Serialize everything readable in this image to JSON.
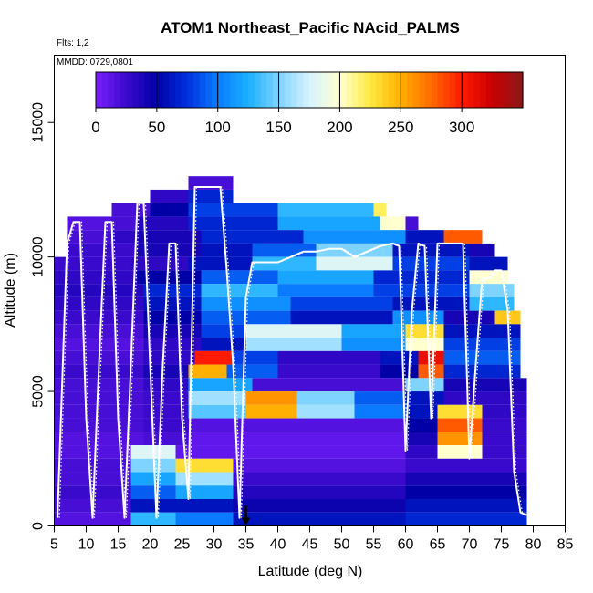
{
  "chart_data": {
    "type": "heatmap",
    "title": "ATOM1 Northeast_Pacific NAcid_PALMS",
    "flights_text": "Flts: 1,2",
    "date_text": "MMDD: 0729,0801",
    "xlabel": "Latitude (deg N)",
    "ylabel": "Altitude (m)",
    "xlim": [
      5,
      85
    ],
    "ylim": [
      0,
      17500
    ],
    "x_ticks": [
      "5",
      "10",
      "15",
      "20",
      "25",
      "30",
      "35",
      "40",
      "45",
      "50",
      "55",
      "60",
      "65",
      "70",
      "75",
      "80",
      "85"
    ],
    "y_ticks": [
      "0",
      "5000",
      "10000",
      "15000"
    ],
    "y_tick_values": [
      0,
      5000,
      10000,
      15000
    ],
    "colorbar": {
      "range": [
        0,
        350
      ],
      "ticks": [
        "0",
        "50",
        "100",
        "150",
        "200",
        "250",
        "300"
      ],
      "tick_values": [
        0,
        50,
        100,
        150,
        200,
        250,
        300
      ],
      "colors": [
        "#7a1fff",
        "#3a0acc",
        "#0000a6",
        "#0030dd",
        "#0a7bff",
        "#1ab0ff",
        "#7fd3ff",
        "#d6f3ff",
        "#ffffd0",
        "#ffea40",
        "#ffb000",
        "#ff6a00",
        "#ff1a00",
        "#c80000",
        "#8b1a1a"
      ]
    },
    "latitude_marker": 35,
    "curtain_rows": [
      {
        "alt": [
          12500,
          13000
        ],
        "segments": [
          [
            26,
            33,
            20
          ]
        ]
      },
      {
        "alt": [
          12000,
          12500
        ],
        "segments": [
          [
            20,
            26,
            30
          ],
          [
            26,
            33,
            70
          ]
        ]
      },
      {
        "alt": [
          11500,
          12000
        ],
        "segments": [
          [
            14,
            20,
            20
          ],
          [
            20,
            26,
            50
          ],
          [
            26,
            40,
            80
          ],
          [
            40,
            55,
            130
          ],
          [
            55,
            57,
            220
          ]
        ]
      },
      {
        "alt": [
          11000,
          11500
        ],
        "segments": [
          [
            7,
            14,
            15
          ],
          [
            14,
            18,
            20
          ],
          [
            18,
            26,
            35
          ],
          [
            26,
            40,
            70
          ],
          [
            40,
            56,
            120
          ],
          [
            56,
            60,
            200
          ],
          [
            60,
            62,
            20
          ]
        ]
      },
      {
        "alt": [
          10500,
          11000
        ],
        "segments": [
          [
            7,
            14,
            20
          ],
          [
            14,
            18,
            30
          ],
          [
            18,
            28,
            40
          ],
          [
            28,
            44,
            70
          ],
          [
            44,
            60,
            110
          ],
          [
            60,
            66,
            60
          ],
          [
            66,
            72,
            280
          ]
        ]
      },
      {
        "alt": [
          10000,
          10500
        ],
        "segments": [
          [
            7,
            18,
            25
          ],
          [
            18,
            28,
            40
          ],
          [
            28,
            36,
            60
          ],
          [
            36,
            46,
            90
          ],
          [
            46,
            58,
            150
          ],
          [
            58,
            70,
            60
          ],
          [
            70,
            74,
            40
          ]
        ]
      },
      {
        "alt": [
          9500,
          10000
        ],
        "segments": [
          [
            5,
            17,
            25
          ],
          [
            17,
            26,
            30
          ],
          [
            26,
            36,
            60
          ],
          [
            36,
            46,
            130
          ],
          [
            46,
            58,
            180
          ],
          [
            58,
            70,
            80
          ],
          [
            70,
            76,
            60
          ]
        ]
      },
      {
        "alt": [
          9000,
          9500
        ],
        "segments": [
          [
            5,
            18,
            30
          ],
          [
            18,
            28,
            50
          ],
          [
            28,
            40,
            90
          ],
          [
            40,
            55,
            120
          ],
          [
            55,
            70,
            70
          ],
          [
            70,
            76,
            200
          ]
        ]
      },
      {
        "alt": [
          8500,
          9000
        ],
        "segments": [
          [
            5,
            19,
            35
          ],
          [
            19,
            28,
            70
          ],
          [
            28,
            40,
            130
          ],
          [
            40,
            55,
            100
          ],
          [
            55,
            70,
            80
          ],
          [
            70,
            77,
            150
          ]
        ]
      },
      {
        "alt": [
          8000,
          8500
        ],
        "segments": [
          [
            5,
            19,
            30
          ],
          [
            19,
            28,
            60
          ],
          [
            28,
            42,
            110
          ],
          [
            42,
            58,
            80
          ],
          [
            58,
            70,
            60
          ],
          [
            70,
            77,
            130
          ]
        ]
      },
      {
        "alt": [
          7500,
          8000
        ],
        "segments": [
          [
            5,
            19,
            25
          ],
          [
            19,
            28,
            50
          ],
          [
            28,
            42,
            90
          ],
          [
            42,
            58,
            60
          ],
          [
            58,
            66,
            110
          ],
          [
            66,
            74,
            40
          ],
          [
            74,
            78,
            240
          ]
        ]
      },
      {
        "alt": [
          7000,
          7500
        ],
        "segments": [
          [
            5,
            19,
            20
          ],
          [
            19,
            28,
            40
          ],
          [
            28,
            35,
            80
          ],
          [
            35,
            50,
            180
          ],
          [
            50,
            60,
            120
          ],
          [
            60,
            66,
            230
          ],
          [
            66,
            78,
            60
          ]
        ]
      },
      {
        "alt": [
          6500,
          7000
        ],
        "segments": [
          [
            5,
            19,
            15
          ],
          [
            19,
            28,
            30
          ],
          [
            28,
            35,
            60
          ],
          [
            35,
            50,
            160
          ],
          [
            50,
            60,
            110
          ],
          [
            60,
            66,
            200
          ],
          [
            66,
            78,
            80
          ]
        ]
      },
      {
        "alt": [
          6000,
          6500
        ],
        "segments": [
          [
            5,
            19,
            20
          ],
          [
            19,
            27,
            30
          ],
          [
            27,
            33,
            300
          ],
          [
            33,
            40,
            80
          ],
          [
            40,
            56,
            30
          ],
          [
            56,
            62,
            60
          ],
          [
            62,
            66,
            310
          ],
          [
            66,
            78,
            90
          ]
        ]
      },
      {
        "alt": [
          5500,
          6000
        ],
        "segments": [
          [
            5,
            19,
            25
          ],
          [
            19,
            26,
            40
          ],
          [
            26,
            32,
            250
          ],
          [
            32,
            40,
            90
          ],
          [
            40,
            56,
            25
          ],
          [
            56,
            62,
            50
          ],
          [
            62,
            66,
            280
          ],
          [
            66,
            78,
            70
          ]
        ]
      },
      {
        "alt": [
          5000,
          5500
        ],
        "segments": [
          [
            5,
            19,
            20
          ],
          [
            19,
            26,
            30
          ],
          [
            26,
            36,
            120
          ],
          [
            36,
            46,
            20
          ],
          [
            46,
            60,
            20
          ],
          [
            60,
            66,
            150
          ],
          [
            66,
            79,
            40
          ]
        ]
      },
      {
        "alt": [
          4500,
          5000
        ],
        "segments": [
          [
            5,
            19,
            20
          ],
          [
            19,
            26,
            25
          ],
          [
            26,
            35,
            160
          ],
          [
            35,
            43,
            260
          ],
          [
            43,
            52,
            150
          ],
          [
            52,
            60,
            90
          ],
          [
            60,
            66,
            60
          ],
          [
            66,
            79,
            30
          ]
        ]
      },
      {
        "alt": [
          4000,
          4500
        ],
        "segments": [
          [
            5,
            19,
            20
          ],
          [
            19,
            26,
            25
          ],
          [
            26,
            35,
            140
          ],
          [
            35,
            43,
            250
          ],
          [
            43,
            52,
            160
          ],
          [
            52,
            60,
            100
          ],
          [
            60,
            65,
            60
          ],
          [
            65,
            72,
            230
          ],
          [
            72,
            79,
            30
          ]
        ]
      },
      {
        "alt": [
          3500,
          4000
        ],
        "segments": [
          [
            5,
            19,
            20
          ],
          [
            19,
            26,
            25
          ],
          [
            26,
            60,
            15
          ],
          [
            60,
            65,
            50
          ],
          [
            65,
            72,
            280
          ],
          [
            72,
            79,
            25
          ]
        ]
      },
      {
        "alt": [
          3000,
          3500
        ],
        "segments": [
          [
            5,
            19,
            15
          ],
          [
            19,
            26,
            20
          ],
          [
            26,
            60,
            10
          ],
          [
            60,
            65,
            40
          ],
          [
            65,
            72,
            260
          ],
          [
            72,
            79,
            25
          ]
        ]
      },
      {
        "alt": [
          2500,
          3000
        ],
        "segments": [
          [
            5,
            17,
            15
          ],
          [
            17,
            24,
            180
          ],
          [
            24,
            60,
            10
          ],
          [
            60,
            65,
            30
          ],
          [
            65,
            72,
            200
          ],
          [
            72,
            79,
            25
          ]
        ]
      },
      {
        "alt": [
          2000,
          2500
        ],
        "segments": [
          [
            5,
            17,
            20
          ],
          [
            17,
            24,
            150
          ],
          [
            24,
            33,
            230
          ],
          [
            33,
            60,
            15
          ],
          [
            60,
            79,
            25
          ]
        ]
      },
      {
        "alt": [
          1500,
          2000
        ],
        "segments": [
          [
            5,
            17,
            20
          ],
          [
            17,
            24,
            120
          ],
          [
            24,
            33,
            160
          ],
          [
            33,
            60,
            25
          ],
          [
            60,
            79,
            40
          ]
        ]
      },
      {
        "alt": [
          1000,
          1500
        ],
        "segments": [
          [
            5,
            17,
            25
          ],
          [
            17,
            24,
            90
          ],
          [
            24,
            33,
            120
          ],
          [
            33,
            60,
            35
          ],
          [
            60,
            79,
            50
          ]
        ]
      },
      {
        "alt": [
          500,
          1000
        ],
        "segments": [
          [
            5,
            17,
            20
          ],
          [
            17,
            24,
            60
          ],
          [
            24,
            33,
            60
          ],
          [
            33,
            60,
            45
          ],
          [
            60,
            79,
            60
          ]
        ]
      },
      {
        "alt": [
          0,
          500
        ],
        "segments": [
          [
            5,
            17,
            15
          ],
          [
            17,
            24,
            130
          ],
          [
            24,
            33,
            100
          ],
          [
            33,
            60,
            60
          ],
          [
            60,
            79,
            70
          ]
        ]
      }
    ],
    "flight_track": {
      "x": [
        5.5,
        7,
        8,
        9,
        10,
        11,
        12,
        13,
        14,
        15,
        16,
        17,
        18,
        19,
        20,
        21,
        22,
        23,
        24,
        25,
        26,
        27,
        28,
        29,
        30,
        31,
        32,
        33,
        34,
        35,
        36,
        37,
        38,
        39,
        40,
        42,
        44,
        46,
        48,
        50,
        52,
        54,
        56,
        58,
        59,
        60,
        61,
        62,
        63,
        64,
        65,
        66,
        67,
        68,
        69,
        70,
        71,
        72,
        73,
        74,
        75,
        76,
        77,
        78,
        79
      ],
      "y": [
        300,
        10500,
        11300,
        11300,
        4000,
        300,
        6000,
        11300,
        11300,
        4000,
        300,
        6000,
        12000,
        12000,
        6000,
        300,
        6000,
        10500,
        10500,
        4000,
        1000,
        12600,
        12600,
        12600,
        12600,
        12600,
        9500,
        6000,
        300,
        8500,
        9800,
        9800,
        9800,
        9800,
        9800,
        10000,
        10200,
        10200,
        10300,
        10300,
        10000,
        10200,
        10400,
        10500,
        10400,
        2800,
        8000,
        10500,
        10400,
        4000,
        10500,
        10500,
        10500,
        10500,
        10500,
        2500,
        6000,
        9200,
        9200,
        9500,
        9500,
        8000,
        2000,
        500,
        400
      ]
    }
  }
}
